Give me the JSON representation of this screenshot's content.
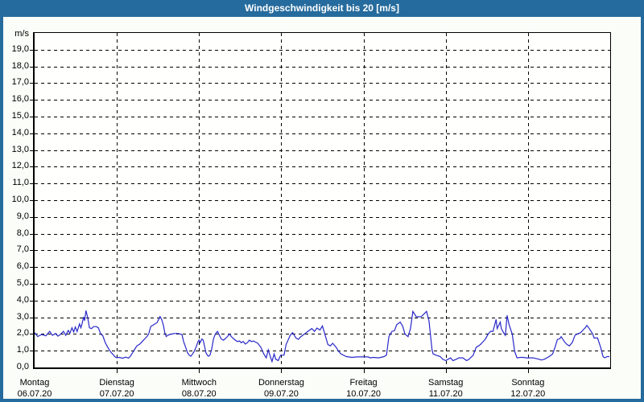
{
  "window": {
    "title": "Windgeschwindigkeit bis 20 [m/s]"
  },
  "colors": {
    "frame": "#266b9d",
    "titlebar": "#266b9d",
    "title_text": "#ffffff",
    "background": "#fbfdf8",
    "plot_background": "#fffffe",
    "grid": "#000000",
    "line": "#2828c8"
  },
  "chart_data": {
    "type": "line",
    "title": "Windgeschwindigkeit bis 20 [m/s]",
    "ylabel": "m/s",
    "ylim": [
      0,
      20
    ],
    "grid": "dashed",
    "legend": "none",
    "x_axis_unit": "hours",
    "x_range": [
      0,
      168
    ],
    "y_ticks": [
      {
        "value": 19,
        "label": "19,0"
      },
      {
        "value": 18,
        "label": "18,0"
      },
      {
        "value": 17,
        "label": "17,0"
      },
      {
        "value": 16,
        "label": "16,0"
      },
      {
        "value": 15,
        "label": "15,0"
      },
      {
        "value": 14,
        "label": "14,0"
      },
      {
        "value": 13,
        "label": "13,0"
      },
      {
        "value": 12,
        "label": "12,0"
      },
      {
        "value": 11,
        "label": "11,0"
      },
      {
        "value": 10,
        "label": "10,0"
      },
      {
        "value": 9,
        "label": "9,0"
      },
      {
        "value": 8,
        "label": "8,0"
      },
      {
        "value": 7,
        "label": "7,0"
      },
      {
        "value": 6,
        "label": "6,0"
      },
      {
        "value": 5,
        "label": "5,0"
      },
      {
        "value": 4,
        "label": "4,0"
      },
      {
        "value": 3,
        "label": "3,0"
      },
      {
        "value": 2,
        "label": "2,0"
      },
      {
        "value": 1,
        "label": "1,0"
      },
      {
        "value": 0,
        "label": "0,0"
      }
    ],
    "days": [
      {
        "name": "Montag",
        "date": "06.07.20"
      },
      {
        "name": "Dienstag",
        "date": "07.07.20"
      },
      {
        "name": "Mittwoch",
        "date": "08.07.20"
      },
      {
        "name": "Donnerstag",
        "date": "09.07.20"
      },
      {
        "name": "Freitag",
        "date": "10.07.20"
      },
      {
        "name": "Samstag",
        "date": "11.07.20"
      },
      {
        "name": "Sonntag",
        "date": "12.07.20"
      }
    ],
    "series": [
      {
        "name": "Windgeschwindigkeit",
        "unit": "m/s",
        "color": "#2828c8",
        "points": [
          [
            0,
            2.08
          ],
          [
            0.9,
            1.85
          ],
          [
            2.1,
            1.97
          ],
          [
            3.3,
            1.89
          ],
          [
            4.4,
            2.16
          ],
          [
            5.2,
            1.92
          ],
          [
            6.1,
            2.03
          ],
          [
            6.8,
            1.87
          ],
          [
            7.5,
            1.97
          ],
          [
            8.4,
            2.16
          ],
          [
            9.1,
            1.92
          ],
          [
            9.8,
            2.21
          ],
          [
            10.3,
            2.05
          ],
          [
            10.9,
            2.37
          ],
          [
            11.4,
            2.12
          ],
          [
            11.9,
            2.42
          ],
          [
            12.4,
            2.15
          ],
          [
            13.1,
            2.6
          ],
          [
            13.5,
            2.37
          ],
          [
            13.9,
            2.66
          ],
          [
            14.3,
            3.03
          ],
          [
            14.6,
            2.8
          ],
          [
            15,
            3.4
          ],
          [
            15.5,
            2.96
          ],
          [
            16,
            2.37
          ],
          [
            16.6,
            2.32
          ],
          [
            17.3,
            2.44
          ],
          [
            18,
            2.44
          ],
          [
            18.6,
            2.37
          ],
          [
            19.3,
            2.0
          ],
          [
            19.9,
            1.9
          ],
          [
            20.6,
            1.49
          ],
          [
            21.2,
            1.26
          ],
          [
            21.8,
            1.05
          ],
          [
            22.3,
            0.9
          ],
          [
            22.8,
            0.8
          ],
          [
            23.4,
            0.65
          ],
          [
            23.9,
            0.58
          ],
          [
            24.8,
            0.6
          ],
          [
            25.7,
            0.55
          ],
          [
            26.6,
            0.62
          ],
          [
            27.4,
            0.56
          ],
          [
            27.9,
            0.65
          ],
          [
            28.5,
            0.85
          ],
          [
            29.2,
            1.08
          ],
          [
            29.8,
            1.28
          ],
          [
            30.7,
            1.4
          ],
          [
            31.4,
            1.55
          ],
          [
            32.1,
            1.7
          ],
          [
            32.8,
            1.85
          ],
          [
            33.3,
            2.0
          ],
          [
            33.9,
            2.45
          ],
          [
            34.5,
            2.52
          ],
          [
            35.1,
            2.6
          ],
          [
            35.7,
            2.67
          ],
          [
            36.1,
            2.82
          ],
          [
            36.6,
            3.04
          ],
          [
            37.1,
            2.86
          ],
          [
            37.6,
            2.52
          ],
          [
            38,
            2.07
          ],
          [
            38.4,
            1.85
          ],
          [
            38.9,
            1.93
          ],
          [
            39.5,
            1.97
          ],
          [
            40.7,
            2.03
          ],
          [
            41.9,
            2.03
          ],
          [
            43,
            1.97
          ],
          [
            43.5,
            1.55
          ],
          [
            44.1,
            1.19
          ],
          [
            44.6,
            0.89
          ],
          [
            45.1,
            0.74
          ],
          [
            45.6,
            0.67
          ],
          [
            46.1,
            0.81
          ],
          [
            46.6,
            0.96
          ],
          [
            47.2,
            1.26
          ],
          [
            47.7,
            1.55
          ],
          [
            48,
            1.63
          ],
          [
            48.3,
            1.48
          ],
          [
            48.8,
            1.7
          ],
          [
            49.2,
            1.63
          ],
          [
            49.6,
            1.26
          ],
          [
            50,
            0.89
          ],
          [
            50.4,
            0.74
          ],
          [
            50.7,
            0.67
          ],
          [
            51.2,
            0.74
          ],
          [
            51.7,
            1.1
          ],
          [
            52.2,
            1.7
          ],
          [
            52.6,
            1.93
          ],
          [
            53,
            2.07
          ],
          [
            53.4,
            2.15
          ],
          [
            53.9,
            1.93
          ],
          [
            54.5,
            1.7
          ],
          [
            55.1,
            1.63
          ],
          [
            55.7,
            1.73
          ],
          [
            56.3,
            1.85
          ],
          [
            56.9,
            2.0
          ],
          [
            57.4,
            1.85
          ],
          [
            58,
            1.73
          ],
          [
            58.6,
            1.63
          ],
          [
            59.2,
            1.55
          ],
          [
            59.8,
            1.58
          ],
          [
            60.3,
            1.48
          ],
          [
            60.9,
            1.55
          ],
          [
            61.5,
            1.4
          ],
          [
            62.1,
            1.48
          ],
          [
            62.7,
            1.63
          ],
          [
            63.3,
            1.55
          ],
          [
            63.9,
            1.58
          ],
          [
            64.4,
            1.52
          ],
          [
            65.1,
            1.45
          ],
          [
            66,
            1.21
          ],
          [
            66.9,
            0.81
          ],
          [
            67.6,
            0.57
          ],
          [
            68.2,
            1.05
          ],
          [
            68.8,
            0.65
          ],
          [
            69.3,
            0.35
          ],
          [
            69.9,
            0.81
          ],
          [
            70.4,
            0.49
          ],
          [
            71.1,
            0.41
          ],
          [
            71.8,
            0.73
          ],
          [
            72.8,
            0.73
          ],
          [
            73.4,
            1.37
          ],
          [
            74.6,
            1.92
          ],
          [
            75.3,
            2.08
          ],
          [
            76.3,
            1.76
          ],
          [
            77,
            1.68
          ],
          [
            77.7,
            1.84
          ],
          [
            78.6,
            1.97
          ],
          [
            79.3,
            2.08
          ],
          [
            80,
            2.19
          ],
          [
            80.9,
            2.32
          ],
          [
            81.7,
            2.16
          ],
          [
            82.4,
            2.35
          ],
          [
            83.3,
            2.24
          ],
          [
            84,
            2.48
          ],
          [
            84.7,
            2.0
          ],
          [
            85.6,
            1.37
          ],
          [
            86.3,
            1.29
          ],
          [
            87,
            1.44
          ],
          [
            88,
            1.21
          ],
          [
            88.7,
            0.97
          ],
          [
            89.4,
            0.81
          ],
          [
            91,
            0.65
          ],
          [
            92.6,
            0.6
          ],
          [
            94.1,
            0.63
          ],
          [
            95.7,
            0.63
          ],
          [
            97.3,
            0.63
          ],
          [
            98,
            0.57
          ],
          [
            98.8,
            0.6
          ],
          [
            100.4,
            0.57
          ],
          [
            102,
            0.65
          ],
          [
            102.7,
            0.73
          ],
          [
            103.4,
            1.84
          ],
          [
            104.3,
            2.16
          ],
          [
            105,
            2.19
          ],
          [
            105.7,
            2.56
          ],
          [
            106.7,
            2.71
          ],
          [
            107.4,
            2.48
          ],
          [
            108.1,
            2.0
          ],
          [
            109,
            1.84
          ],
          [
            109.7,
            2.32
          ],
          [
            110.4,
            3.35
          ],
          [
            111.4,
            3.03
          ],
          [
            112.8,
            3.03
          ],
          [
            114.4,
            3.35
          ],
          [
            115.1,
            2.79
          ],
          [
            116,
            1.05
          ],
          [
            116.3,
            0.81
          ],
          [
            117.2,
            0.73
          ],
          [
            118.4,
            0.65
          ],
          [
            119.1,
            0.49
          ],
          [
            120,
            0.41
          ],
          [
            120.7,
            0.49
          ],
          [
            121.4,
            0.57
          ],
          [
            122.1,
            0.41
          ],
          [
            123.1,
            0.49
          ],
          [
            123.8,
            0.57
          ],
          [
            125,
            0.57
          ],
          [
            126.1,
            0.41
          ],
          [
            126.8,
            0.49
          ],
          [
            128,
            0.73
          ],
          [
            128.9,
            1.21
          ],
          [
            129.6,
            1.29
          ],
          [
            130.1,
            1.37
          ],
          [
            130.8,
            1.52
          ],
          [
            131.5,
            1.68
          ],
          [
            132.4,
            2.0
          ],
          [
            133.1,
            2.16
          ],
          [
            133.8,
            2.16
          ],
          [
            134.7,
            2.87
          ],
          [
            135,
            2.32
          ],
          [
            135.9,
            2.71
          ],
          [
            136.2,
            2.32
          ],
          [
            137.1,
            2.0
          ],
          [
            137.4,
            1.92
          ],
          [
            137.9,
            3.11
          ],
          [
            138.5,
            2.56
          ],
          [
            139.4,
            2.0
          ],
          [
            140.1,
            0.97
          ],
          [
            140.8,
            0.57
          ],
          [
            141.8,
            0.6
          ],
          [
            142.5,
            0.6
          ],
          [
            143.6,
            0.57
          ],
          [
            144.6,
            0.57
          ],
          [
            145.5,
            0.57
          ],
          [
            147.2,
            0.49
          ],
          [
            147.9,
            0.44
          ],
          [
            148.8,
            0.49
          ],
          [
            150.2,
            0.65
          ],
          [
            151.2,
            0.81
          ],
          [
            151.9,
            1.21
          ],
          [
            152.6,
            1.68
          ],
          [
            153.3,
            1.71
          ],
          [
            153.7,
            1.84
          ],
          [
            154.7,
            1.52
          ],
          [
            155.4,
            1.37
          ],
          [
            156.1,
            1.29
          ],
          [
            157,
            1.52
          ],
          [
            157.7,
            1.92
          ],
          [
            158.4,
            2.0
          ],
          [
            159.4,
            2.08
          ],
          [
            160.1,
            2.24
          ],
          [
            160.8,
            2.4
          ],
          [
            161.2,
            2.51
          ],
          [
            161.9,
            2.32
          ],
          [
            162.9,
            2.0
          ],
          [
            163.3,
            1.76
          ],
          [
            164.3,
            1.76
          ],
          [
            165.2,
            1.21
          ],
          [
            165.9,
            0.65
          ],
          [
            166.4,
            0.57
          ],
          [
            167.1,
            0.65
          ],
          [
            167.8,
            0.65
          ]
        ]
      }
    ]
  }
}
